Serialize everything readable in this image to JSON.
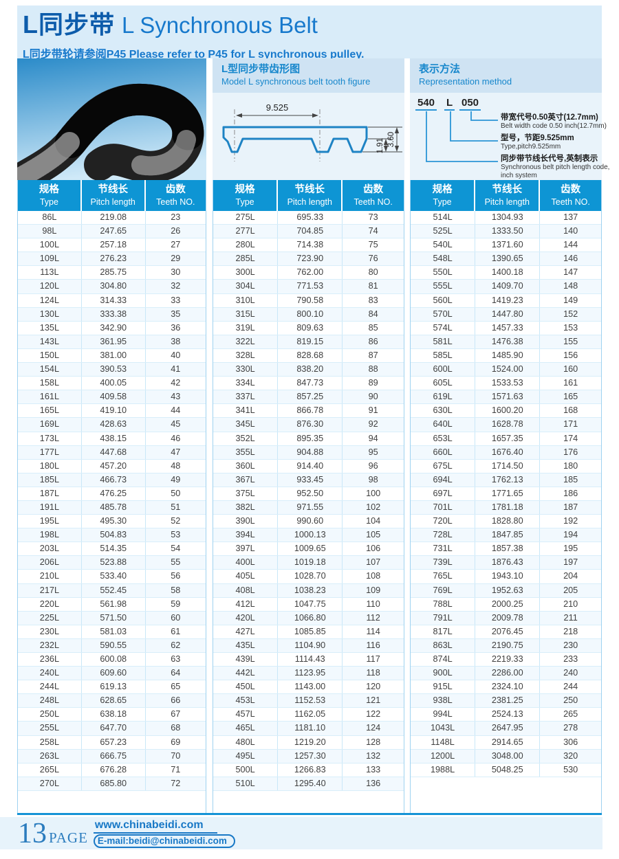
{
  "header": {
    "title_zh": "L同步带",
    "title_en": "L Synchronous Belt",
    "subtitle": "L同步带轮请参阅P45 Please refer to P45 for L synchronous pulley."
  },
  "tooth_figure": {
    "title_zh": "L型同步带齿形图",
    "title_en": "Model L synchronous belt tooth figure",
    "dim_pitch": "9.525",
    "dim_tooth_depth": "1.91",
    "dim_thickness": "3.60"
  },
  "representation": {
    "title_zh": "表示方法",
    "title_en": "Representation method",
    "code": [
      "540",
      "L",
      "050"
    ],
    "notes": [
      {
        "zh": "带宽代号0.50英寸(12.7mm)",
        "en": "Belt width code 0.50 inch(12.7mm)"
      },
      {
        "zh": "型号，节距9.525mm",
        "en": "Type,pitch9.525mm"
      },
      {
        "zh": "同步带节线长代号,英制表示",
        "en": "Synchronous belt pitch length code,",
        "en2": "inch system"
      }
    ]
  },
  "table_headers": [
    {
      "zh": "规格",
      "en": "Type"
    },
    {
      "zh": "节线长",
      "en": "Pitch length"
    },
    {
      "zh": "齿数",
      "en": "Teeth NO."
    }
  ],
  "tables": [
    {
      "rows": [
        [
          "86L",
          "219.08",
          "23"
        ],
        [
          "98L",
          "247.65",
          "26"
        ],
        [
          "100L",
          "257.18",
          "27"
        ],
        [
          "109L",
          "276.23",
          "29"
        ],
        [
          "113L",
          "285.75",
          "30"
        ],
        [
          "120L",
          "304.80",
          "32"
        ],
        [
          "124L",
          "314.33",
          "33"
        ],
        [
          "130L",
          "333.38",
          "35"
        ],
        [
          "135L",
          "342.90",
          "36"
        ],
        [
          "143L",
          "361.95",
          "38"
        ],
        [
          "150L",
          "381.00",
          "40"
        ],
        [
          "154L",
          "390.53",
          "41"
        ],
        [
          "158L",
          "400.05",
          "42"
        ],
        [
          "161L",
          "409.58",
          "43"
        ],
        [
          "165L",
          "419.10",
          "44"
        ],
        [
          "169L",
          "428.63",
          "45"
        ],
        [
          "173L",
          "438.15",
          "46"
        ],
        [
          "177L",
          "447.68",
          "47"
        ],
        [
          "180L",
          "457.20",
          "48"
        ],
        [
          "185L",
          "466.73",
          "49"
        ],
        [
          "187L",
          "476.25",
          "50"
        ],
        [
          "191L",
          "485.78",
          "51"
        ],
        [
          "195L",
          "495.30",
          "52"
        ],
        [
          "198L",
          "504.83",
          "53"
        ],
        [
          "203L",
          "514.35",
          "54"
        ],
        [
          "206L",
          "523.88",
          "55"
        ],
        [
          "210L",
          "533.40",
          "56"
        ],
        [
          "217L",
          "552.45",
          "58"
        ],
        [
          "220L",
          "561.98",
          "59"
        ],
        [
          "225L",
          "571.50",
          "60"
        ],
        [
          "230L",
          "581.03",
          "61"
        ],
        [
          "232L",
          "590.55",
          "62"
        ],
        [
          "236L",
          "600.08",
          "63"
        ],
        [
          "240L",
          "609.60",
          "64"
        ],
        [
          "244L",
          "619.13",
          "65"
        ],
        [
          "248L",
          "628.65",
          "66"
        ],
        [
          "250L",
          "638.18",
          "67"
        ],
        [
          "255L",
          "647.70",
          "68"
        ],
        [
          "258L",
          "657.23",
          "69"
        ],
        [
          "263L",
          "666.75",
          "70"
        ],
        [
          "265L",
          "676.28",
          "71"
        ],
        [
          "270L",
          "685.80",
          "72"
        ]
      ]
    },
    {
      "rows": [
        [
          "275L",
          "695.33",
          "73"
        ],
        [
          "277L",
          "704.85",
          "74"
        ],
        [
          "280L",
          "714.38",
          "75"
        ],
        [
          "285L",
          "723.90",
          "76"
        ],
        [
          "300L",
          "762.00",
          "80"
        ],
        [
          "304L",
          "771.53",
          "81"
        ],
        [
          "310L",
          "790.58",
          "83"
        ],
        [
          "315L",
          "800.10",
          "84"
        ],
        [
          "319L",
          "809.63",
          "85"
        ],
        [
          "322L",
          "819.15",
          "86"
        ],
        [
          "328L",
          "828.68",
          "87"
        ],
        [
          "330L",
          "838.20",
          "88"
        ],
        [
          "334L",
          "847.73",
          "89"
        ],
        [
          "337L",
          "857.25",
          "90"
        ],
        [
          "341L",
          "866.78",
          "91"
        ],
        [
          "345L",
          "876.30",
          "92"
        ],
        [
          "352L",
          "895.35",
          "94"
        ],
        [
          "355L",
          "904.88",
          "95"
        ],
        [
          "360L",
          "914.40",
          "96"
        ],
        [
          "367L",
          "933.45",
          "98"
        ],
        [
          "375L",
          "952.50",
          "100"
        ],
        [
          "382L",
          "971.55",
          "102"
        ],
        [
          "390L",
          "990.60",
          "104"
        ],
        [
          "394L",
          "1000.13",
          "105"
        ],
        [
          "397L",
          "1009.65",
          "106"
        ],
        [
          "400L",
          "1019.18",
          "107"
        ],
        [
          "405L",
          "1028.70",
          "108"
        ],
        [
          "408L",
          "1038.23",
          "109"
        ],
        [
          "412L",
          "1047.75",
          "110"
        ],
        [
          "420L",
          "1066.80",
          "112"
        ],
        [
          "427L",
          "1085.85",
          "114"
        ],
        [
          "435L",
          "1104.90",
          "116"
        ],
        [
          "439L",
          "1114.43",
          "117"
        ],
        [
          "442L",
          "1123.95",
          "118"
        ],
        [
          "450L",
          "1143.00",
          "120"
        ],
        [
          "453L",
          "1152.53",
          "121"
        ],
        [
          "457L",
          "1162.05",
          "122"
        ],
        [
          "465L",
          "1181.10",
          "124"
        ],
        [
          "480L",
          "1219.20",
          "128"
        ],
        [
          "495L",
          "1257.30",
          "132"
        ],
        [
          "500L",
          "1266.83",
          "133"
        ],
        [
          "510L",
          "1295.40",
          "136"
        ]
      ]
    },
    {
      "rows": [
        [
          "514L",
          "1304.93",
          "137"
        ],
        [
          "525L",
          "1333.50",
          "140"
        ],
        [
          "540L",
          "1371.60",
          "144"
        ],
        [
          "548L",
          "1390.65",
          "146"
        ],
        [
          "550L",
          "1400.18",
          "147"
        ],
        [
          "555L",
          "1409.70",
          "148"
        ],
        [
          "560L",
          "1419.23",
          "149"
        ],
        [
          "570L",
          "1447.80",
          "152"
        ],
        [
          "574L",
          "1457.33",
          "153"
        ],
        [
          "581L",
          "1476.38",
          "155"
        ],
        [
          "585L",
          "1485.90",
          "156"
        ],
        [
          "600L",
          "1524.00",
          "160"
        ],
        [
          "605L",
          "1533.53",
          "161"
        ],
        [
          "619L",
          "1571.63",
          "165"
        ],
        [
          "630L",
          "1600.20",
          "168"
        ],
        [
          "640L",
          "1628.78",
          "171"
        ],
        [
          "653L",
          "1657.35",
          "174"
        ],
        [
          "660L",
          "1676.40",
          "176"
        ],
        [
          "675L",
          "1714.50",
          "180"
        ],
        [
          "694L",
          "1762.13",
          "185"
        ],
        [
          "697L",
          "1771.65",
          "186"
        ],
        [
          "701L",
          "1781.18",
          "187"
        ],
        [
          "720L",
          "1828.80",
          "192"
        ],
        [
          "728L",
          "1847.85",
          "194"
        ],
        [
          "731L",
          "1857.38",
          "195"
        ],
        [
          "739L",
          "1876.43",
          "197"
        ],
        [
          "765L",
          "1943.10",
          "204"
        ],
        [
          "769L",
          "1952.63",
          "205"
        ],
        [
          "788L",
          "2000.25",
          "210"
        ],
        [
          "791L",
          "2009.78",
          "211"
        ],
        [
          "817L",
          "2076.45",
          "218"
        ],
        [
          "863L",
          "2190.75",
          "230"
        ],
        [
          "874L",
          "2219.33",
          "233"
        ],
        [
          "900L",
          "2286.00",
          "240"
        ],
        [
          "915L",
          "2324.10",
          "244"
        ],
        [
          "938L",
          "2381.25",
          "250"
        ],
        [
          "994L",
          "2524.13",
          "265"
        ],
        [
          "1043L",
          "2647.95",
          "278"
        ],
        [
          "1148L",
          "2914.65",
          "306"
        ],
        [
          "1200L",
          "3048.00",
          "320"
        ],
        [
          "1988L",
          "5048.25",
          "530"
        ]
      ]
    }
  ],
  "footer": {
    "page_number": "13",
    "page_label": "PAGE",
    "website": "www.chinabeidi.com",
    "email": "E-mail:beidi@chinabeidi.com"
  },
  "colors": {
    "accent_blue": "#0e95d4",
    "title_dark_blue": "#0d5cab",
    "title_blue": "#1779cc",
    "band_light": "#d9ecf9",
    "panel_band": "#cfe3f3",
    "panel_body": "#e9f3fa",
    "diagram_stroke": "#1e83c4",
    "footer_blue": "#1878c6"
  }
}
